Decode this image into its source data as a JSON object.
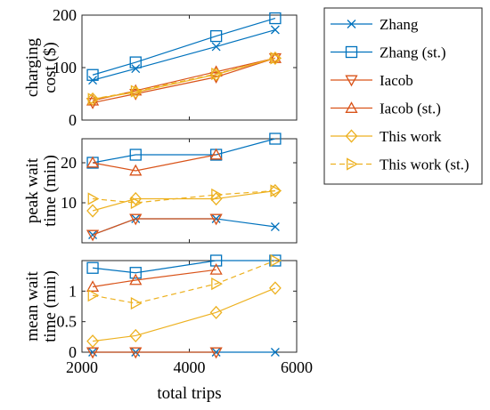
{
  "legend": [
    {
      "name": "Zhang",
      "color": "#0072BD",
      "marker": "x",
      "dashed": false
    },
    {
      "name": "Zhang (st.)",
      "color": "#0072BD",
      "marker": "square",
      "dashed": false
    },
    {
      "name": "Iacob",
      "color": "#D95319",
      "marker": "triangle-down",
      "dashed": false
    },
    {
      "name": "Iacob (st.)",
      "color": "#D95319",
      "marker": "triangle-up",
      "dashed": false
    },
    {
      "name": "This work",
      "color": "#EDB120",
      "marker": "diamond",
      "dashed": false
    },
    {
      "name": "This work (st.)",
      "color": "#EDB120",
      "marker": "triangle-right",
      "dashed": true
    }
  ],
  "chart_data": [
    {
      "type": "line",
      "ylabel": [
        "charging",
        "cost ($)"
      ],
      "xlabel": "",
      "x": [
        2200,
        3000,
        4500,
        5600
      ],
      "xlim": [
        2000,
        6000
      ],
      "ylim": [
        0,
        200
      ],
      "yticks": [
        0,
        100,
        200
      ],
      "xticks": [
        2000,
        4000,
        6000
      ],
      "show_x_tick_labels": false,
      "grid": false,
      "series": [
        {
          "name": "Zhang",
          "values": [
            76,
            98,
            140,
            172
          ]
        },
        {
          "name": "Zhang (st.)",
          "values": [
            86,
            110,
            160,
            194
          ]
        },
        {
          "name": "Iacob",
          "values": [
            33,
            50,
            82,
            118
          ]
        },
        {
          "name": "Iacob (st.)",
          "values": [
            37,
            56,
            92,
            118
          ]
        },
        {
          "name": "This work",
          "values": [
            40,
            53,
            87,
            118
          ]
        },
        {
          "name": "This work (st.)",
          "values": [
            40,
            55,
            88,
            118
          ]
        }
      ]
    },
    {
      "type": "line",
      "ylabel": [
        "peak wait",
        "time (min)"
      ],
      "xlabel": "",
      "x": [
        2200,
        3000,
        4500,
        5600
      ],
      "xlim": [
        2000,
        6000
      ],
      "ylim": [
        0,
        26
      ],
      "yticks": [
        10,
        20
      ],
      "xticks": [
        2000,
        4000,
        6000
      ],
      "show_x_tick_labels": false,
      "grid": false,
      "series": [
        {
          "name": "Zhang",
          "values": [
            2,
            6,
            6,
            4
          ]
        },
        {
          "name": "Zhang (st.)",
          "values": [
            20,
            22,
            22,
            26
          ]
        },
        {
          "name": "Iacob",
          "values": [
            2,
            6,
            6,
            null
          ]
        },
        {
          "name": "Iacob (st.)",
          "values": [
            20,
            18,
            22,
            null
          ]
        },
        {
          "name": "This work",
          "values": [
            8,
            11,
            11,
            13
          ]
        },
        {
          "name": "This work (st.)",
          "values": [
            11,
            10,
            12,
            13
          ]
        }
      ]
    },
    {
      "type": "line",
      "ylabel": [
        "mean wait",
        "time (min)"
      ],
      "xlabel": "total trips",
      "x": [
        2200,
        3000,
        4500,
        5600
      ],
      "xlim": [
        2000,
        6000
      ],
      "ylim": [
        0,
        1.5
      ],
      "yticks": [
        0,
        0.5,
        1
      ],
      "xticks": [
        2000,
        4000,
        6000
      ],
      "show_x_tick_labels": true,
      "grid": false,
      "series": [
        {
          "name": "Zhang",
          "values": [
            0,
            0,
            0,
            0
          ]
        },
        {
          "name": "Zhang (st.)",
          "values": [
            1.38,
            1.3,
            1.5,
            1.5
          ]
        },
        {
          "name": "Iacob",
          "values": [
            0,
            0,
            0,
            null
          ]
        },
        {
          "name": "Iacob (st.)",
          "values": [
            1.07,
            1.18,
            1.35,
            null
          ]
        },
        {
          "name": "This work",
          "values": [
            0.18,
            0.27,
            0.65,
            1.05
          ]
        },
        {
          "name": "This work (st.)",
          "values": [
            0.93,
            0.8,
            1.12,
            1.5
          ]
        }
      ]
    }
  ]
}
